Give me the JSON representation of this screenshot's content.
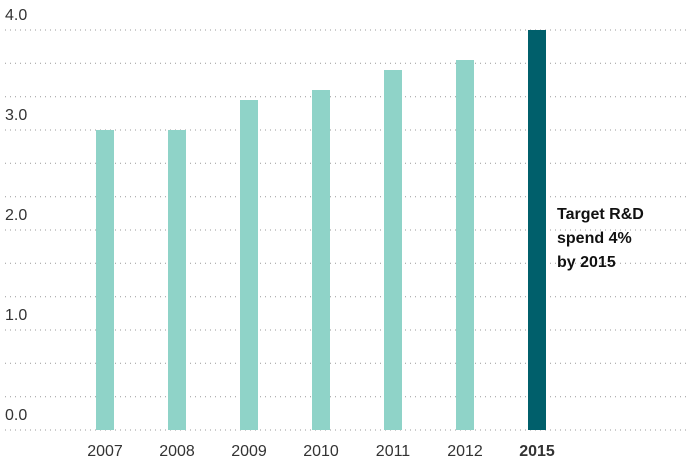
{
  "chart_data": {
    "type": "bar",
    "categories": [
      "2007",
      "2008",
      "2009",
      "2010",
      "2011",
      "2012",
      "2015"
    ],
    "values": [
      3.0,
      3.0,
      3.3,
      3.4,
      3.6,
      3.7,
      4.0
    ],
    "colors": [
      "#8fd3c8",
      "#8fd3c8",
      "#8fd3c8",
      "#8fd3c8",
      "#8fd3c8",
      "#8fd3c8",
      "#005f6b"
    ],
    "highlight_index": 6,
    "ylim": [
      0,
      4
    ],
    "yticks": [
      {
        "value": 0,
        "label": "0.0"
      },
      {
        "value": 1,
        "label": "1.0"
      },
      {
        "value": 2,
        "label": "2.0"
      },
      {
        "value": 3,
        "label": "3.0"
      },
      {
        "value": 4,
        "label": "4.0"
      }
    ],
    "y_minor_ticks": [
      0.333,
      0.667,
      1.333,
      1.667,
      2.333,
      2.667,
      3.333,
      3.667
    ],
    "grid": true,
    "annotation": [
      "Target R&D",
      "spend 4%",
      "by 2015"
    ]
  }
}
